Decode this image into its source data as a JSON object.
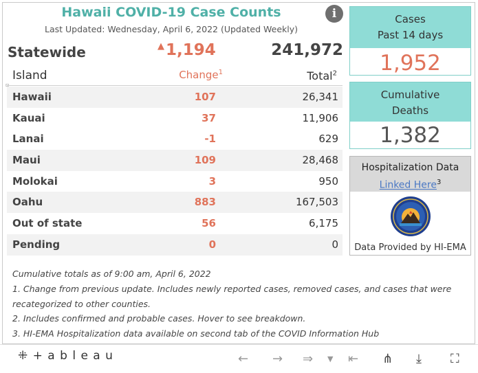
{
  "header": {
    "title": "Hawaii COVID-19 Case Counts",
    "last_updated": "Last Updated: Wednesday, April 6, 2022 (Updated Weekly)",
    "info_icon": "i"
  },
  "statewide": {
    "label": "Statewide",
    "change_arrow": "▲",
    "change": "1,194",
    "total": "241,972"
  },
  "table": {
    "col_island": "Island",
    "col_change": "Change",
    "col_change_sup": "1",
    "col_total": "Total",
    "col_total_sup": "2",
    "rows": [
      {
        "island": "Hawaii",
        "change": "107",
        "total": "26,341"
      },
      {
        "island": "Kauai",
        "change": "37",
        "total": "11,906"
      },
      {
        "island": "Lanai",
        "change": "-1",
        "total": "629"
      },
      {
        "island": "Maui",
        "change": "109",
        "total": "28,468"
      },
      {
        "island": "Molokai",
        "change": "3",
        "total": "950"
      },
      {
        "island": "Oahu",
        "change": "883",
        "total": "167,503"
      },
      {
        "island": "Out of state",
        "change": "56",
        "total": "6,175"
      },
      {
        "island": "Pending",
        "change": "0",
        "total": "0"
      }
    ]
  },
  "cards": {
    "cases_line1": "Cases",
    "cases_line2": "Past 14 days",
    "cases_value": "1,952",
    "deaths_line1": "Cumulative",
    "deaths_line2": "Deaths",
    "deaths_value": "1,382"
  },
  "hospitalization": {
    "title": "Hospitalization Data",
    "link": "Linked Here",
    "link_sup": "3",
    "provided": "Data Provided by HI-EMA"
  },
  "notes": [
    "Cumulative totals as of 9:00 am, April 6, 2022",
    "1. Change from previous update. Includes newly reported cases, removed cases, and cases that were",
    "recategorized to other counties.",
    "2. Includes confirmed and probable cases. Hover to see breakdown.",
    "3. HI-EMA Hospitalization data available on second tab of the COVID Information Hub"
  ],
  "toolbar": {
    "logo": "+ a b l e a u"
  },
  "colors": {
    "accent_teal": "#4fb0a7",
    "card_teal": "#8fdcd6",
    "change_red": "#e0735a"
  }
}
